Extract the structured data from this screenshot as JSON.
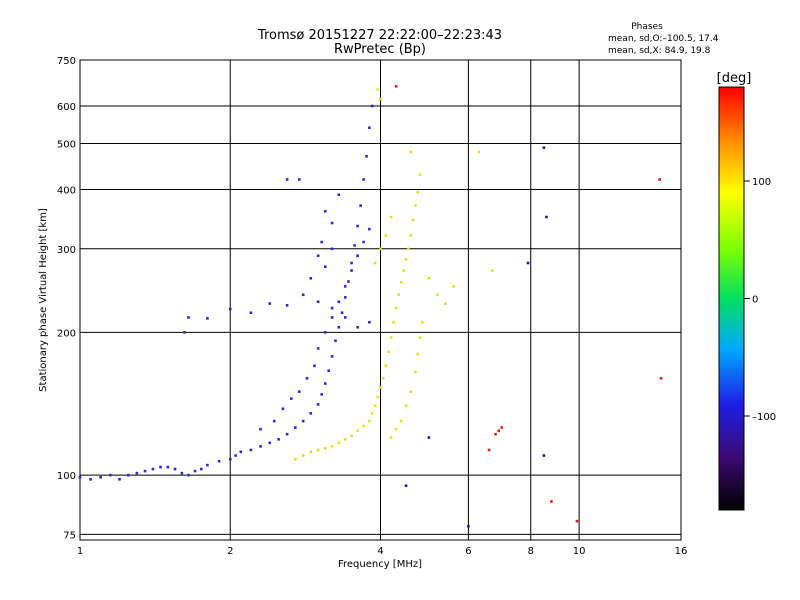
{
  "chart_data": {
    "type": "scatter",
    "title": "Tromsø 20151227 22:22:00–22:23:43",
    "subtitle": "RwPretec (Bp)",
    "xlabel": "Frequency [MHz]",
    "ylabel": "Stationary phase Virtual Height [km]",
    "xscale": "log",
    "yscale": "log",
    "xlim": [
      1,
      16
    ],
    "ylim": [
      73,
      750
    ],
    "grid": true,
    "x_ticks": [
      1,
      2,
      4,
      6,
      8,
      10,
      16
    ],
    "x_tick_labels": [
      "1",
      "2",
      "4",
      "6",
      "8",
      "10",
      "16"
    ],
    "y_ticks": [
      75,
      100,
      200,
      300,
      400,
      500,
      600,
      750
    ],
    "y_tick_labels": [
      "75",
      "100",
      "200",
      "300",
      "400",
      "500",
      "600",
      "750"
    ],
    "legend": {
      "title": "Phases",
      "lines": [
        "mean, sd,O:–100.5, 17.4",
        "mean, sd,X:  84.9, 19.8"
      ],
      "placement": "top-right"
    },
    "colorbar": {
      "label": "[deg]",
      "range": [
        -180,
        180
      ],
      "ticks": [
        100,
        0,
        -100
      ],
      "tick_labels": [
        "100",
        "0",
        "–100"
      ]
    },
    "series": [
      {
        "name": "O",
        "phase_mean_deg": -100.5,
        "phase_sd_deg": 17.4,
        "color": "#2a2ad8",
        "points": [
          [
            1.0,
            99
          ],
          [
            1.05,
            98
          ],
          [
            1.1,
            99
          ],
          [
            1.15,
            100
          ],
          [
            1.2,
            98
          ],
          [
            1.25,
            100
          ],
          [
            1.3,
            101
          ],
          [
            1.35,
            102
          ],
          [
            1.4,
            103
          ],
          [
            1.45,
            104
          ],
          [
            1.5,
            104
          ],
          [
            1.55,
            103
          ],
          [
            1.6,
            101
          ],
          [
            1.65,
            100
          ],
          [
            1.7,
            102
          ],
          [
            1.75,
            103
          ],
          [
            1.8,
            105
          ],
          [
            1.9,
            107
          ],
          [
            2.0,
            108
          ],
          [
            2.05,
            110
          ],
          [
            2.1,
            112
          ],
          [
            2.2,
            113
          ],
          [
            2.3,
            115
          ],
          [
            2.4,
            117
          ],
          [
            2.5,
            119
          ],
          [
            2.6,
            122
          ],
          [
            2.7,
            126
          ],
          [
            2.8,
            130
          ],
          [
            2.9,
            135
          ],
          [
            3.0,
            141
          ],
          [
            3.05,
            148
          ],
          [
            3.1,
            156
          ],
          [
            3.15,
            166
          ],
          [
            3.2,
            178
          ],
          [
            3.25,
            192
          ],
          [
            3.3,
            205
          ],
          [
            3.35,
            220
          ],
          [
            3.4,
            237
          ],
          [
            3.45,
            256
          ],
          [
            3.5,
            280
          ],
          [
            3.55,
            305
          ],
          [
            3.6,
            335
          ],
          [
            3.65,
            370
          ],
          [
            3.7,
            420
          ],
          [
            3.75,
            470
          ],
          [
            3.8,
            540
          ],
          [
            3.85,
            600
          ],
          [
            2.3,
            125
          ],
          [
            2.45,
            130
          ],
          [
            2.55,
            138
          ],
          [
            2.65,
            145
          ],
          [
            2.75,
            150
          ],
          [
            2.85,
            160
          ],
          [
            2.95,
            170
          ],
          [
            3.0,
            185
          ],
          [
            3.1,
            200
          ],
          [
            3.2,
            215
          ],
          [
            3.3,
            232
          ],
          [
            3.4,
            250
          ],
          [
            3.5,
            270
          ],
          [
            3.6,
            290
          ],
          [
            3.7,
            310
          ],
          [
            3.8,
            330
          ],
          [
            2.4,
            230
          ],
          [
            2.6,
            228
          ],
          [
            2.8,
            240
          ],
          [
            3.0,
            232
          ],
          [
            3.2,
            225
          ],
          [
            3.4,
            215
          ],
          [
            3.6,
            205
          ],
          [
            3.8,
            210
          ],
          [
            2.2,
            220
          ],
          [
            2.0,
            224
          ],
          [
            1.8,
            214
          ],
          [
            1.65,
            215
          ],
          [
            1.62,
            200
          ],
          [
            2.6,
            420
          ],
          [
            2.75,
            420
          ],
          [
            3.1,
            360
          ],
          [
            3.2,
            340
          ],
          [
            3.3,
            390
          ],
          [
            3.0,
            290
          ],
          [
            3.05,
            310
          ],
          [
            2.9,
            260
          ],
          [
            3.1,
            275
          ],
          [
            3.2,
            300
          ]
        ]
      },
      {
        "name": "X",
        "phase_mean_deg": 84.9,
        "phase_sd_deg": 19.8,
        "color": "#e0e020",
        "points": [
          [
            2.7,
            108
          ],
          [
            2.8,
            110
          ],
          [
            2.9,
            112
          ],
          [
            3.0,
            113
          ],
          [
            3.1,
            114
          ],
          [
            3.2,
            115
          ],
          [
            3.3,
            117
          ],
          [
            3.4,
            119
          ],
          [
            3.5,
            121
          ],
          [
            3.6,
            124
          ],
          [
            3.7,
            127
          ],
          [
            3.8,
            130
          ],
          [
            3.85,
            135
          ],
          [
            3.9,
            140
          ],
          [
            3.95,
            146
          ],
          [
            4.0,
            153
          ],
          [
            4.05,
            160
          ],
          [
            4.1,
            170
          ],
          [
            4.15,
            182
          ],
          [
            4.2,
            195
          ],
          [
            4.25,
            210
          ],
          [
            4.3,
            225
          ],
          [
            4.35,
            240
          ],
          [
            4.4,
            255
          ],
          [
            4.45,
            270
          ],
          [
            4.5,
            285
          ],
          [
            4.55,
            300
          ],
          [
            4.6,
            320
          ],
          [
            4.65,
            345
          ],
          [
            4.7,
            370
          ],
          [
            4.75,
            395
          ],
          [
            4.8,
            430
          ],
          [
            4.2,
            120
          ],
          [
            4.3,
            125
          ],
          [
            4.4,
            130
          ],
          [
            4.5,
            140
          ],
          [
            4.6,
            150
          ],
          [
            4.7,
            165
          ],
          [
            4.75,
            180
          ],
          [
            4.8,
            195
          ],
          [
            4.85,
            210
          ],
          [
            3.9,
            280
          ],
          [
            4.0,
            300
          ],
          [
            4.1,
            320
          ],
          [
            4.2,
            350
          ],
          [
            4.0,
            620
          ],
          [
            3.95,
            650
          ],
          [
            5.0,
            260
          ],
          [
            5.2,
            240
          ],
          [
            5.4,
            230
          ],
          [
            5.6,
            250
          ],
          [
            4.6,
            480
          ],
          [
            6.3,
            480
          ],
          [
            6.7,
            270
          ]
        ]
      },
      {
        "name": "other",
        "color": "#e02010",
        "points": [
          [
            6.8,
            122
          ],
          [
            6.9,
            124
          ],
          [
            7.0,
            126
          ],
          [
            6.6,
            113
          ],
          [
            4.3,
            660
          ],
          [
            14.5,
            420
          ],
          [
            14.6,
            160
          ],
          [
            8.8,
            88
          ],
          [
            9.9,
            80
          ]
        ]
      },
      {
        "name": "other2",
        "color": "#1a1aa0",
        "points": [
          [
            8.5,
            490
          ],
          [
            8.5,
            110
          ],
          [
            8.6,
            350
          ],
          [
            4.5,
            95
          ],
          [
            7.9,
            280
          ],
          [
            5.0,
            120
          ],
          [
            6.0,
            78
          ]
        ]
      }
    ]
  }
}
